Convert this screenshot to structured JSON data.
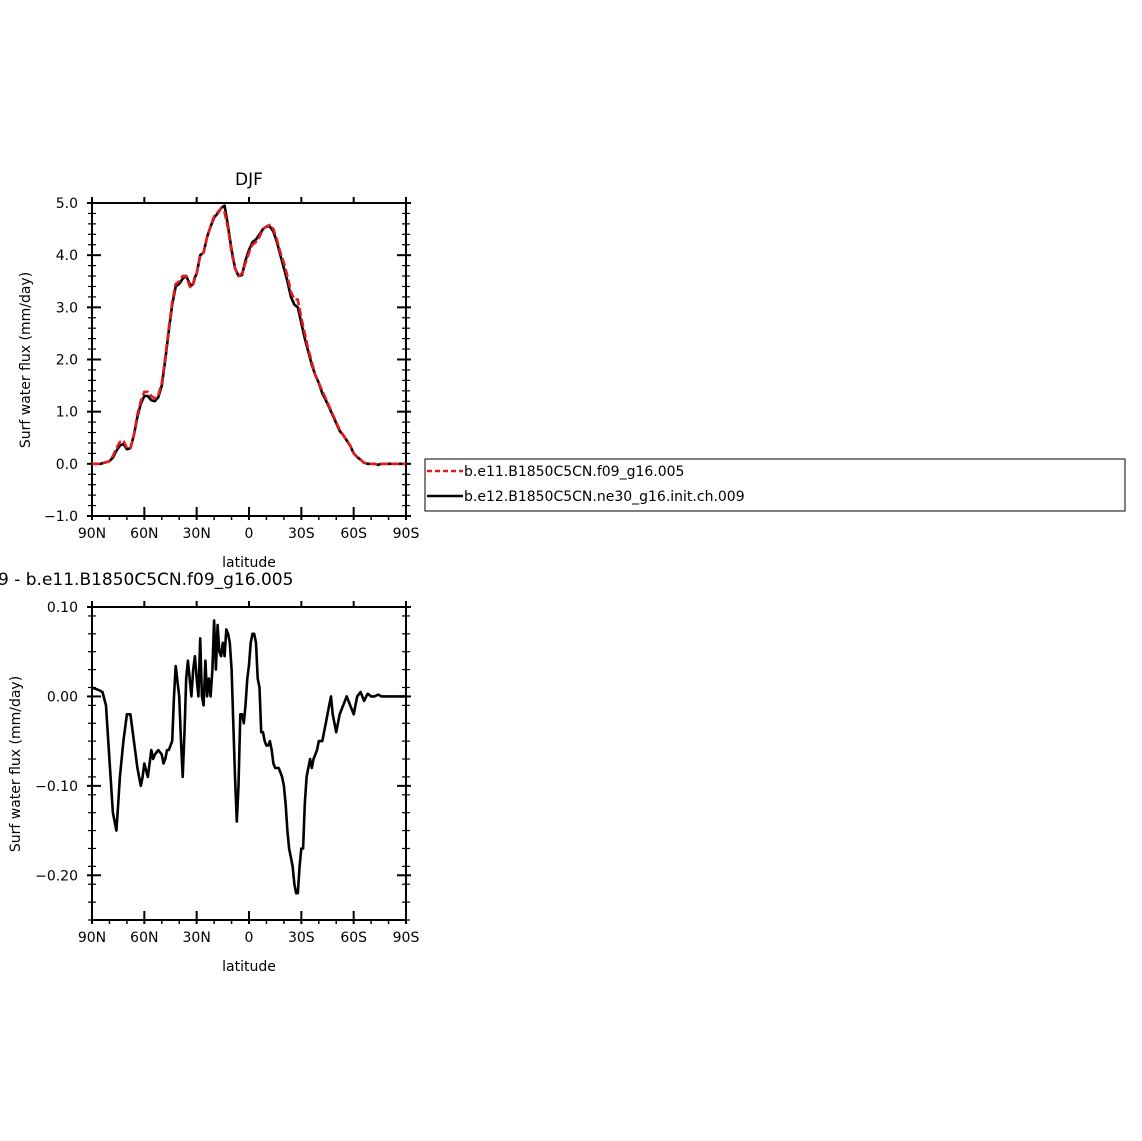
{
  "chart_data": [
    {
      "type": "line",
      "title": "DJF",
      "xlabel": "latitude",
      "ylabel": "Surf water flux (mm/day)",
      "xlim": [
        90,
        -90
      ],
      "ylim": [
        -1.0,
        5.0
      ],
      "x_ticks": [
        90,
        60,
        30,
        0,
        -30,
        -60,
        -90
      ],
      "x_tick_labels": [
        "90N",
        "60N",
        "30N",
        "0",
        "30S",
        "60S",
        "90S"
      ],
      "y_ticks": [
        -1.0,
        0.0,
        1.0,
        2.0,
        3.0,
        4.0,
        5.0
      ],
      "y_tick_labels": [
        "-1.0",
        "0.0",
        "1.0",
        "2.0",
        "3.0",
        "4.0",
        "5.0"
      ],
      "legend": "right",
      "series": [
        {
          "name": "b.e11.B1850C5CN.f09_g16.005",
          "color": "#e41a1c",
          "dash": true,
          "x": [
            90,
            85,
            80,
            78,
            76,
            74,
            72,
            70,
            68,
            66,
            64,
            62,
            60,
            58,
            56,
            54,
            52,
            50,
            48,
            46,
            44,
            42,
            40,
            38,
            36,
            34,
            33,
            32,
            31,
            30,
            28,
            26,
            24,
            22,
            20,
            18,
            16,
            14,
            12,
            10,
            8,
            6,
            4,
            2,
            0,
            -2,
            -4,
            -6,
            -8,
            -10,
            -12,
            -14,
            -16,
            -18,
            -20,
            -22,
            -24,
            -26,
            -28,
            -30,
            -32,
            -34,
            -36,
            -38,
            -40,
            -42,
            -44,
            -46,
            -48,
            -50,
            -52,
            -54,
            -56,
            -58,
            -60,
            -62,
            -64,
            -66,
            -68,
            -70,
            -72,
            -74,
            -76,
            -78,
            -80,
            -82,
            -84,
            -86,
            -88,
            -90
          ],
          "y": [
            0.0,
            0.0,
            0.05,
            0.15,
            0.3,
            0.42,
            0.45,
            0.3,
            0.3,
            0.55,
            0.95,
            1.2,
            1.38,
            1.38,
            1.3,
            1.25,
            1.32,
            1.55,
            2.05,
            2.6,
            3.1,
            3.45,
            3.5,
            3.6,
            3.6,
            3.4,
            3.38,
            3.45,
            3.6,
            3.65,
            4.0,
            4.05,
            4.35,
            4.55,
            4.75,
            4.82,
            4.9,
            4.82,
            4.5,
            4.05,
            3.75,
            3.6,
            3.65,
            3.85,
            4.05,
            4.2,
            4.25,
            4.35,
            4.5,
            4.55,
            4.58,
            4.5,
            4.3,
            4.05,
            3.85,
            3.6,
            3.3,
            3.15,
            3.15,
            2.8,
            2.5,
            2.2,
            1.95,
            1.7,
            1.55,
            1.4,
            1.25,
            1.1,
            0.95,
            0.8,
            0.65,
            0.55,
            0.45,
            0.35,
            0.2,
            0.13,
            0.08,
            0.02,
            0.0,
            0.0,
            0.0,
            -0.02,
            0.0,
            0.0,
            0.0,
            0.0,
            0.0,
            0.0,
            0.0,
            0.0
          ]
        },
        {
          "name": "b.e12.B1850C5CN.ne30_g16.init.ch.009",
          "color": "#000000",
          "dash": false,
          "x": [
            90,
            85,
            80,
            78,
            76,
            74,
            72,
            70,
            68,
            66,
            64,
            62,
            60,
            58,
            56,
            54,
            52,
            50,
            48,
            46,
            44,
            42,
            40,
            38,
            36,
            34,
            33,
            32,
            31,
            30,
            28,
            26,
            24,
            22,
            20,
            18,
            16,
            14,
            12,
            10,
            8,
            6,
            4,
            2,
            0,
            -2,
            -4,
            -6,
            -8,
            -10,
            -12,
            -14,
            -16,
            -18,
            -20,
            -22,
            -24,
            -26,
            -28,
            -30,
            -32,
            -34,
            -36,
            -38,
            -40,
            -42,
            -44,
            -46,
            -48,
            -50,
            -52,
            -54,
            -56,
            -58,
            -60,
            -62,
            -64,
            -66,
            -68,
            -70,
            -72,
            -74,
            -76,
            -78,
            -80,
            -82,
            -84,
            -86,
            -88,
            -90
          ],
          "y": [
            0.0,
            0.0,
            0.05,
            0.12,
            0.25,
            0.35,
            0.38,
            0.28,
            0.3,
            0.55,
            0.9,
            1.15,
            1.3,
            1.3,
            1.22,
            1.2,
            1.28,
            1.5,
            2.0,
            2.55,
            3.05,
            3.4,
            3.45,
            3.55,
            3.6,
            3.45,
            3.42,
            3.45,
            3.57,
            3.65,
            4.0,
            4.05,
            4.35,
            4.55,
            4.72,
            4.8,
            4.9,
            4.95,
            4.55,
            4.1,
            3.75,
            3.6,
            3.62,
            3.9,
            4.1,
            4.25,
            4.3,
            4.4,
            4.5,
            4.55,
            4.55,
            4.45,
            4.25,
            4.0,
            3.75,
            3.5,
            3.2,
            3.05,
            3.0,
            2.7,
            2.4,
            2.15,
            1.9,
            1.7,
            1.55,
            1.35,
            1.22,
            1.08,
            0.93,
            0.78,
            0.63,
            0.55,
            0.45,
            0.35,
            0.2,
            0.13,
            0.08,
            0.02,
            0.0,
            0.0,
            0.0,
            -0.02,
            0.0,
            0.0,
            0.0,
            0.0,
            0.0,
            0.0,
            0.0,
            0.0
          ]
        }
      ]
    },
    {
      "type": "line",
      "title": "9 - b.e11.B1850C5CN.f09_g16.005",
      "xlabel": "latitude",
      "ylabel": "Surf water flux (mm/day)",
      "xlim": [
        90,
        -90
      ],
      "ylim": [
        -0.25,
        0.1
      ],
      "x_ticks": [
        90,
        60,
        30,
        0,
        -30,
        -60,
        -90
      ],
      "x_tick_labels": [
        "90N",
        "60N",
        "30N",
        "0",
        "30S",
        "60S",
        "90S"
      ],
      "y_ticks": [
        -0.2,
        -0.1,
        0.0,
        0.1
      ],
      "y_tick_labels": [
        "-0.20",
        "-0.10",
        "0.00",
        "0.10"
      ],
      "series": [
        {
          "color": "#000000",
          "x": [
            90,
            86,
            84,
            82,
            80,
            78,
            76,
            75,
            74,
            72,
            70,
            68,
            66,
            64,
            62,
            61,
            60,
            58,
            57,
            56,
            55,
            54,
            52,
            50,
            49,
            48,
            47,
            46,
            44,
            43,
            42,
            40,
            39,
            38,
            37,
            36,
            35,
            34,
            33,
            32,
            31,
            30,
            29,
            28,
            27,
            26,
            25,
            24,
            23,
            22,
            21,
            20,
            19,
            18,
            17,
            16,
            15,
            14,
            13,
            12,
            11,
            10,
            9,
            8,
            7,
            6,
            5,
            4,
            3,
            2,
            1,
            0,
            -1,
            -2,
            -3,
            -4,
            -5,
            -6,
            -7,
            -8,
            -9,
            -10,
            -11,
            -12,
            -13,
            -14,
            -15,
            -16,
            -17,
            -18,
            -19,
            -20,
            -21,
            -22,
            -23,
            -24,
            -25,
            -26,
            -27,
            -28,
            -29,
            -30,
            -31,
            -32,
            -33,
            -34,
            -35,
            -36,
            -37,
            -38,
            -39,
            -40,
            -41,
            -42,
            -43,
            -44,
            -45,
            -46,
            -47,
            -48,
            -50,
            -52,
            -54,
            -56,
            -58,
            -60,
            -62,
            -64,
            -66,
            -68,
            -70,
            -72,
            -74,
            -76,
            -78,
            -80,
            -82,
            -84,
            -86,
            -88,
            -90
          ],
          "y": [
            0.01,
            0.007,
            0.005,
            -0.01,
            -0.07,
            -0.13,
            -0.15,
            -0.12,
            -0.09,
            -0.05,
            -0.02,
            -0.02,
            -0.05,
            -0.08,
            -0.1,
            -0.09,
            -0.075,
            -0.09,
            -0.075,
            -0.06,
            -0.07,
            -0.065,
            -0.06,
            -0.065,
            -0.075,
            -0.07,
            -0.06,
            -0.06,
            -0.05,
            0.0,
            0.034,
            0.0,
            -0.05,
            -0.09,
            -0.04,
            0.02,
            0.04,
            0.02,
            0.0,
            0.03,
            0.045,
            0.02,
            0.0,
            0.065,
            0.0,
            -0.01,
            0.04,
            0.0,
            0.02,
            0.0,
            0.03,
            0.085,
            0.03,
            0.08,
            0.05,
            0.045,
            0.06,
            0.045,
            0.075,
            0.07,
            0.06,
            0.03,
            -0.03,
            -0.09,
            -0.14,
            -0.1,
            -0.02,
            -0.02,
            -0.03,
            -0.01,
            0.02,
            0.035,
            0.06,
            0.07,
            0.07,
            0.06,
            0.02,
            0.01,
            -0.04,
            -0.04,
            -0.05,
            -0.055,
            -0.055,
            -0.05,
            -0.06,
            -0.075,
            -0.08,
            -0.08,
            -0.08,
            -0.085,
            -0.09,
            -0.1,
            -0.12,
            -0.15,
            -0.17,
            -0.18,
            -0.19,
            -0.21,
            -0.22,
            -0.22,
            -0.19,
            -0.17,
            -0.17,
            -0.12,
            -0.09,
            -0.08,
            -0.07,
            -0.08,
            -0.07,
            -0.065,
            -0.06,
            -0.05,
            -0.05,
            -0.05,
            -0.04,
            -0.03,
            -0.02,
            -0.01,
            0.0,
            -0.02,
            -0.04,
            -0.02,
            -0.01,
            0.0,
            -0.01,
            -0.02,
            0.0,
            0.005,
            -0.005,
            0.003,
            0.0,
            0.0,
            0.002,
            0.0,
            0.0,
            0.0,
            0.0,
            0.0,
            0.0,
            0.0,
            0.0
          ]
        }
      ]
    }
  ]
}
